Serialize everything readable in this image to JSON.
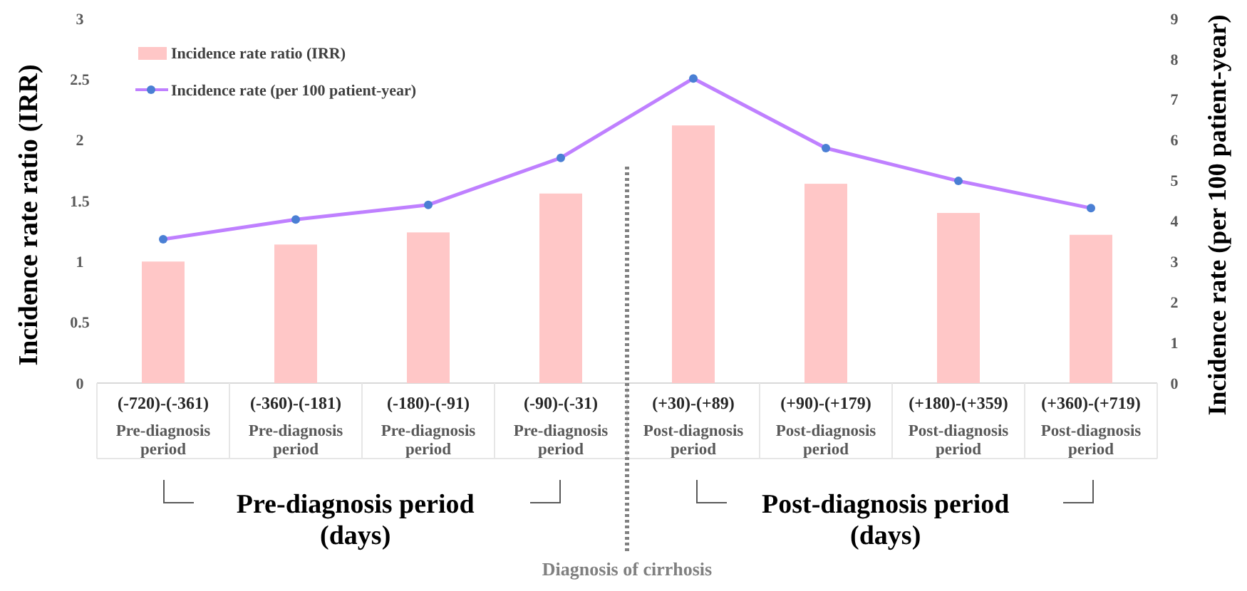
{
  "chart_data": {
    "type": "bar",
    "categories": [
      "(-720)-(-361)\nPre-diagnosis\nperiod",
      "(-360)-(-181)\nPre-diagnosis\nperiod",
      "(-180)-(-91)\nPre-diagnosis\nperiod",
      "(-90)-(-31)\nPre-diagnosis\nperiod",
      "(+30)-(+89)\nPost-diagnosis\nperiod",
      "(+90)-(+179)\nPost-diagnosis\nperiod",
      "(+180)-(+359)\nPost-diagnosis\nperiod",
      "(+360)-(+719)\nPost-diagnosis\nperiod"
    ],
    "series": [
      {
        "name": "Incidence rate ratio (IRR)",
        "color": "#ffc7c7",
        "values": [
          1.0,
          1.14,
          1.24,
          1.56,
          2.12,
          1.64,
          1.4,
          1.22
        ]
      },
      {
        "name": "Incidence rate (per 100 patient-year)",
        "type": "line",
        "axis": "y2",
        "color": "#bf80ff",
        "marker": "circle",
        "values": [
          3.55,
          4.04,
          4.4,
          5.56,
          7.52,
          5.8,
          4.99,
          4.32
        ]
      }
    ],
    "ylabel": "Incidence rate ratio (IRR)",
    "y2label": "Incidence rate (per 100 patient-year)",
    "ylim": [
      0,
      3
    ],
    "yticks": [
      0,
      0.5,
      1,
      1.5,
      2,
      2.5,
      3
    ],
    "y2lim": [
      0,
      9
    ],
    "y2ticks": [
      0,
      1,
      2,
      3,
      4,
      5,
      6,
      7,
      8,
      9
    ],
    "annotations": [
      "Pre-diagnosis period\n(days)",
      "Post-diagnosis period\n(days)",
      "Diagnosis of cirrhosis"
    ],
    "legend": "top left",
    "grid": false
  }
}
